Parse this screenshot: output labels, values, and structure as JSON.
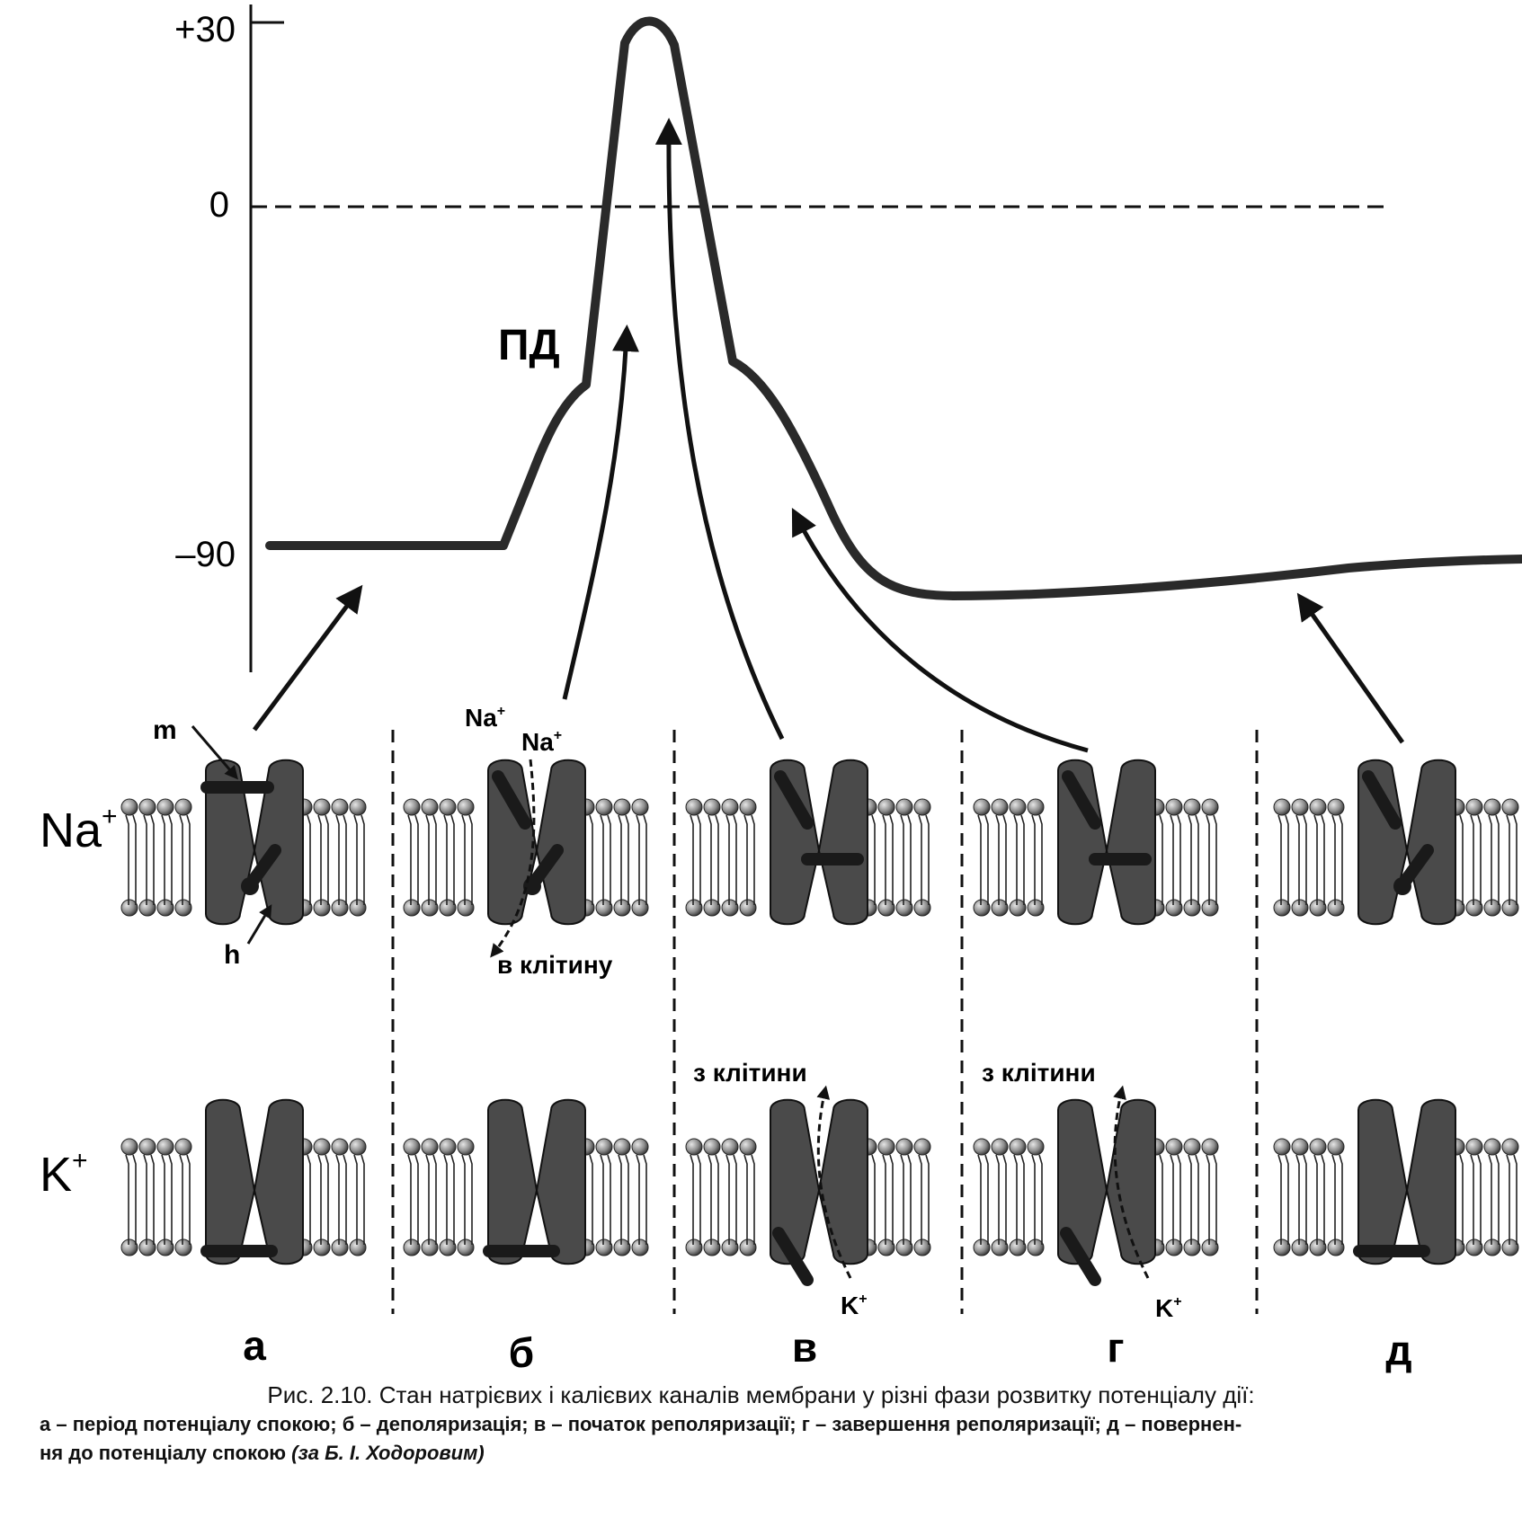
{
  "axis": {
    "ticks": [
      {
        "label": "+30",
        "value": 30
      },
      {
        "label": "0",
        "value": 0
      },
      {
        "label": "–90",
        "value": -90
      }
    ]
  },
  "ap_label": "ПД",
  "rows": {
    "na": {
      "label": "Na",
      "sup": "+"
    },
    "k": {
      "label": "K",
      "sup": "+"
    }
  },
  "gates": {
    "m": "m",
    "h": "h"
  },
  "ions": {
    "na_flow_1": {
      "text": "Na",
      "sup": "+"
    },
    "na_flow_2": {
      "text": "Na",
      "sup": "+"
    },
    "into_cell": "в клітину",
    "out_of_cell_v": "з клітини",
    "out_of_cell_g": "з клітини",
    "k_flow_v": {
      "text": "K",
      "sup": "+"
    },
    "k_flow_g": {
      "text": "K",
      "sup": "+"
    }
  },
  "panels": [
    "а",
    "б",
    "в",
    "г",
    "д"
  ],
  "caption": {
    "title": "Рис. 2.10. Стан натрієвих і калієвих каналів мембрани у різні фази розвитку потенціалу дії:",
    "line1": "а – період потенціалу спокою; б – деполяризація; в – початок реполяризації; г – завершення реполяризації; д – повернен-",
    "line2": "ня до потенціалу спокою",
    "author": "(за Б. І. Ходоровим)"
  },
  "colors": {
    "protein": "#4a4a4a",
    "line": "#1a1a1a",
    "lipid_head": "#9a9a9a"
  }
}
